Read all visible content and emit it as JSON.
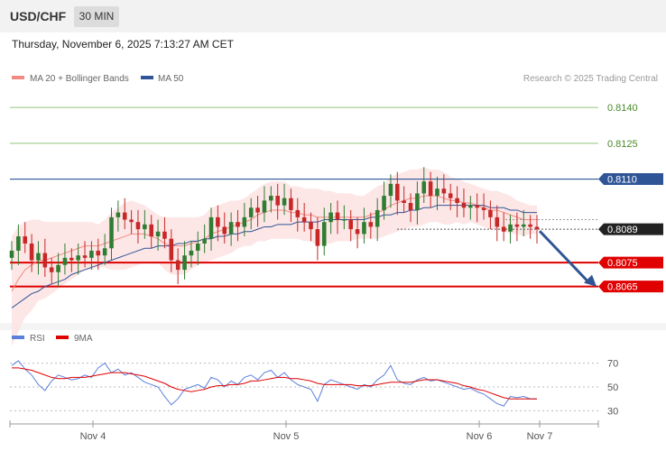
{
  "header": {
    "symbol": "USD/CHF",
    "timeframe": "30 MIN"
  },
  "datetime": "Thursday, November 6, 2025 7:13:27 AM CET",
  "copyright": "Research © 2025 Trading Central",
  "colors": {
    "ma20": "#f28b82",
    "ma50": "#2f5597",
    "bands": "#fde3e3",
    "bull": "#2e7d32",
    "bear": "#c62828",
    "green_line": "#92c47a",
    "blue_line": "#2f5597",
    "red_line": "#e00000",
    "rsi": "#5b7fdb",
    "rsi_ma": "#e00000"
  },
  "chart_data": [
    {
      "type": "candlestick",
      "legend": [
        "MA 20 + Bollinger Bands",
        "MA 50"
      ],
      "x_ticks": [
        "Nov 4",
        "Nov 5",
        "Nov 6",
        "Nov 7"
      ],
      "ylim": [
        0.8052,
        0.8148
      ],
      "levels": [
        {
          "value": 0.814,
          "label": "0.8140",
          "style": "green"
        },
        {
          "value": 0.8125,
          "label": "0.8125",
          "style": "green"
        },
        {
          "value": 0.811,
          "label": "0.8110",
          "style": "blue"
        },
        {
          "value": 0.8089,
          "label": "0.8089",
          "style": "current"
        },
        {
          "value": 0.8075,
          "label": "0.8075",
          "style": "red"
        },
        {
          "value": 0.8065,
          "label": "0.8065",
          "style": "red"
        }
      ],
      "closes": [
        0.808,
        0.8086,
        0.8083,
        0.8076,
        0.8079,
        0.8073,
        0.8071,
        0.8074,
        0.8077,
        0.8076,
        0.8078,
        0.8077,
        0.808,
        0.8078,
        0.8081,
        0.8094,
        0.8096,
        0.8093,
        0.8092,
        0.8089,
        0.8091,
        0.8086,
        0.8088,
        0.8085,
        0.8076,
        0.8072,
        0.8078,
        0.808,
        0.8083,
        0.8085,
        0.8094,
        0.809,
        0.8087,
        0.8092,
        0.809,
        0.8094,
        0.8098,
        0.8096,
        0.8101,
        0.8103,
        0.8099,
        0.8102,
        0.8097,
        0.8094,
        0.8092,
        0.8089,
        0.8082,
        0.8092,
        0.8096,
        0.8093,
        0.8093,
        0.8089,
        0.8087,
        0.8092,
        0.809,
        0.8097,
        0.8103,
        0.8108,
        0.8101,
        0.81,
        0.8097,
        0.8104,
        0.8109,
        0.8103,
        0.8106,
        0.8104,
        0.8102,
        0.81,
        0.8098,
        0.8099,
        0.8098,
        0.8097,
        0.8094,
        0.809,
        0.8088,
        0.8091,
        0.809,
        0.8091,
        0.809,
        0.8089
      ],
      "ma20": [
        0.8063,
        0.8068,
        0.8072,
        0.8074,
        0.8076,
        0.8076,
        0.8077,
        0.8078,
        0.8079,
        0.808,
        0.8081,
        0.8082,
        0.8082,
        0.8082,
        0.8083,
        0.8084,
        0.8085,
        0.8086,
        0.8087,
        0.8087,
        0.8087,
        0.8086,
        0.8085,
        0.8083,
        0.8082,
        0.8082,
        0.8082,
        0.8083,
        0.8084,
        0.8085,
        0.8087,
        0.8088,
        0.8089,
        0.809,
        0.8091,
        0.8092,
        0.8093,
        0.8095,
        0.8096,
        0.8097,
        0.8097,
        0.8097,
        0.8096,
        0.8096,
        0.8095,
        0.8095,
        0.8094,
        0.8094,
        0.8094,
        0.8094,
        0.8094,
        0.8094,
        0.8094,
        0.8094,
        0.8095,
        0.8096,
        0.8097,
        0.8099,
        0.81,
        0.8101,
        0.8102,
        0.8102,
        0.8103,
        0.8103,
        0.8103,
        0.8102,
        0.8101,
        0.8101,
        0.81,
        0.81,
        0.8099,
        0.8098,
        0.8097,
        0.8097,
        0.8096,
        0.8095,
        0.8094,
        0.8093,
        0.8093,
        0.8093
      ],
      "ma50": [
        0.8056,
        0.8058,
        0.806,
        0.8062,
        0.8063,
        0.8065,
        0.8066,
        0.8067,
        0.8068,
        0.807,
        0.8071,
        0.8072,
        0.8073,
        0.8074,
        0.8075,
        0.8076,
        0.8077,
        0.8078,
        0.8079,
        0.808,
        0.8081,
        0.8081,
        0.8082,
        0.8082,
        0.8082,
        0.8083,
        0.8083,
        0.8084,
        0.8084,
        0.8085,
        0.8085,
        0.8086,
        0.8086,
        0.8087,
        0.8087,
        0.8088,
        0.8088,
        0.8089,
        0.809,
        0.809,
        0.8091,
        0.8091,
        0.8091,
        0.8092,
        0.8092,
        0.8092,
        0.8092,
        0.8093,
        0.8093,
        0.8093,
        0.8093,
        0.8093,
        0.8093,
        0.8093,
        0.8094,
        0.8094,
        0.8095,
        0.8095,
        0.8096,
        0.8096,
        0.8097,
        0.8097,
        0.8098,
        0.8098,
        0.8099,
        0.8099,
        0.8099,
        0.8099,
        0.8099,
        0.8099,
        0.8099,
        0.8099,
        0.8098,
        0.8098,
        0.8098,
        0.8097,
        0.8097,
        0.8096,
        0.8096,
        0.8096
      ],
      "band_width": [
        0.0023,
        0.0022,
        0.002,
        0.0019,
        0.0017,
        0.0016,
        0.0015,
        0.0014,
        0.0013,
        0.0012,
        0.0011,
        0.001,
        0.001,
        0.0009,
        0.001,
        0.0012,
        0.0013,
        0.0014,
        0.0014,
        0.0013,
        0.0012,
        0.0011,
        0.001,
        0.0011,
        0.0012,
        0.0012,
        0.0012,
        0.0011,
        0.001,
        0.001,
        0.0011,
        0.0011,
        0.0011,
        0.0011,
        0.001,
        0.001,
        0.0011,
        0.0011,
        0.0012,
        0.0012,
        0.0012,
        0.0012,
        0.0011,
        0.0011,
        0.0011,
        0.0011,
        0.0012,
        0.0011,
        0.0011,
        0.001,
        0.001,
        0.001,
        0.0009,
        0.0009,
        0.001,
        0.0011,
        0.0011,
        0.0012,
        0.0012,
        0.0012,
        0.0012,
        0.0012,
        0.0012,
        0.0011,
        0.0011,
        0.0011,
        0.001,
        0.0009,
        0.0009,
        0.0008,
        0.0008,
        0.0008,
        0.0008,
        0.0008,
        0.0008,
        0.0008,
        0.0007,
        0.0007,
        0.0006,
        0.0006
      ],
      "projection": {
        "from": 0.8089,
        "to": 0.8065
      }
    },
    {
      "type": "line",
      "legend": [
        "RSI",
        "9MA"
      ],
      "ylim": [
        25,
        78
      ],
      "levels": [
        70,
        50,
        30
      ],
      "rsi": [
        68,
        72,
        65,
        60,
        52,
        47,
        55,
        60,
        58,
        56,
        57,
        60,
        58,
        66,
        70,
        62,
        65,
        60,
        62,
        58,
        54,
        52,
        50,
        42,
        35,
        40,
        48,
        50,
        52,
        49,
        58,
        56,
        50,
        55,
        52,
        58,
        60,
        56,
        62,
        64,
        58,
        62,
        56,
        52,
        50,
        48,
        38,
        52,
        56,
        54,
        52,
        50,
        48,
        52,
        50,
        56,
        60,
        68,
        56,
        53,
        52,
        56,
        58,
        55,
        56,
        54,
        52,
        50,
        48,
        49,
        46,
        44,
        40,
        36,
        34,
        42,
        41,
        42,
        40,
        40
      ],
      "rsi_ma": [
        66,
        66,
        65,
        64,
        62,
        60,
        58,
        57,
        57,
        58,
        58,
        58,
        59,
        60,
        61,
        62,
        62,
        62,
        61,
        60,
        59,
        57,
        55,
        53,
        50,
        48,
        47,
        46,
        47,
        48,
        50,
        51,
        51,
        52,
        52,
        53,
        55,
        55,
        56,
        57,
        58,
        58,
        57,
        57,
        56,
        55,
        53,
        52,
        52,
        52,
        52,
        52,
        51,
        51,
        51,
        52,
        53,
        54,
        54,
        54,
        54,
        55,
        56,
        56,
        56,
        55,
        54,
        53,
        51,
        50,
        48,
        47,
        45,
        43,
        41,
        40,
        40,
        40,
        40,
        40
      ]
    }
  ]
}
